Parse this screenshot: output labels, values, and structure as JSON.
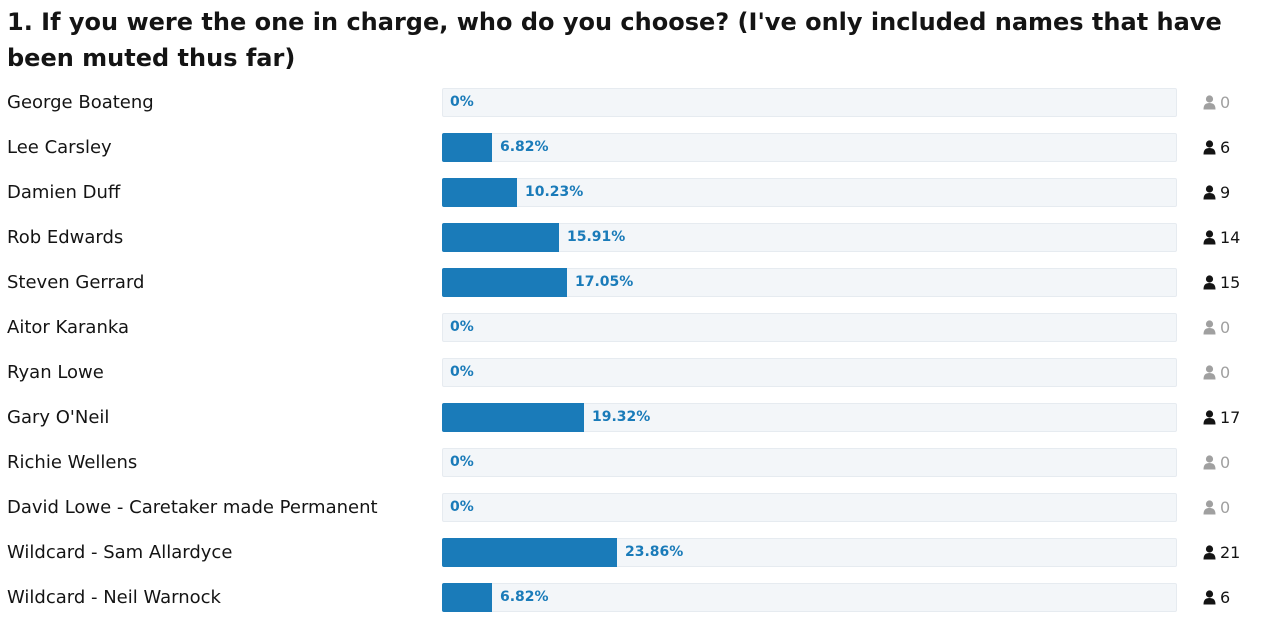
{
  "question": "1. If you were the one in charge, who do you choose? (I've only included names that have been muted thus far)",
  "accent_color": "#1a7bb9",
  "choices": [
    {
      "label": "George Boateng",
      "percent_text": "0%",
      "fraction": 0.0,
      "votes": "0",
      "zero": true
    },
    {
      "label": "Lee Carsley",
      "percent_text": "6.82%",
      "fraction": 0.0682,
      "votes": "6",
      "zero": false
    },
    {
      "label": "Damien Duff",
      "percent_text": "10.23%",
      "fraction": 0.1023,
      "votes": "9",
      "zero": false
    },
    {
      "label": "Rob Edwards",
      "percent_text": "15.91%",
      "fraction": 0.1591,
      "votes": "14",
      "zero": false
    },
    {
      "label": "Steven Gerrard",
      "percent_text": "17.05%",
      "fraction": 0.1705,
      "votes": "15",
      "zero": false
    },
    {
      "label": "Aitor Karanka",
      "percent_text": "0%",
      "fraction": 0.0,
      "votes": "0",
      "zero": true
    },
    {
      "label": "Ryan Lowe",
      "percent_text": "0%",
      "fraction": 0.0,
      "votes": "0",
      "zero": true
    },
    {
      "label": "Gary O'Neil",
      "percent_text": "19.32%",
      "fraction": 0.1932,
      "votes": "17",
      "zero": false
    },
    {
      "label": "Richie Wellens",
      "percent_text": "0%",
      "fraction": 0.0,
      "votes": "0",
      "zero": true
    },
    {
      "label": "David Lowe - Caretaker made Permanent",
      "percent_text": "0%",
      "fraction": 0.0,
      "votes": "0",
      "zero": true
    },
    {
      "label": "Wildcard - Sam Allardyce",
      "percent_text": "23.86%",
      "fraction": 0.2386,
      "votes": "21",
      "zero": false
    },
    {
      "label": "Wildcard - Neil Warnock",
      "percent_text": "6.82%",
      "fraction": 0.0682,
      "votes": "6",
      "zero": false
    }
  ],
  "voter_icon": "user-icon"
}
